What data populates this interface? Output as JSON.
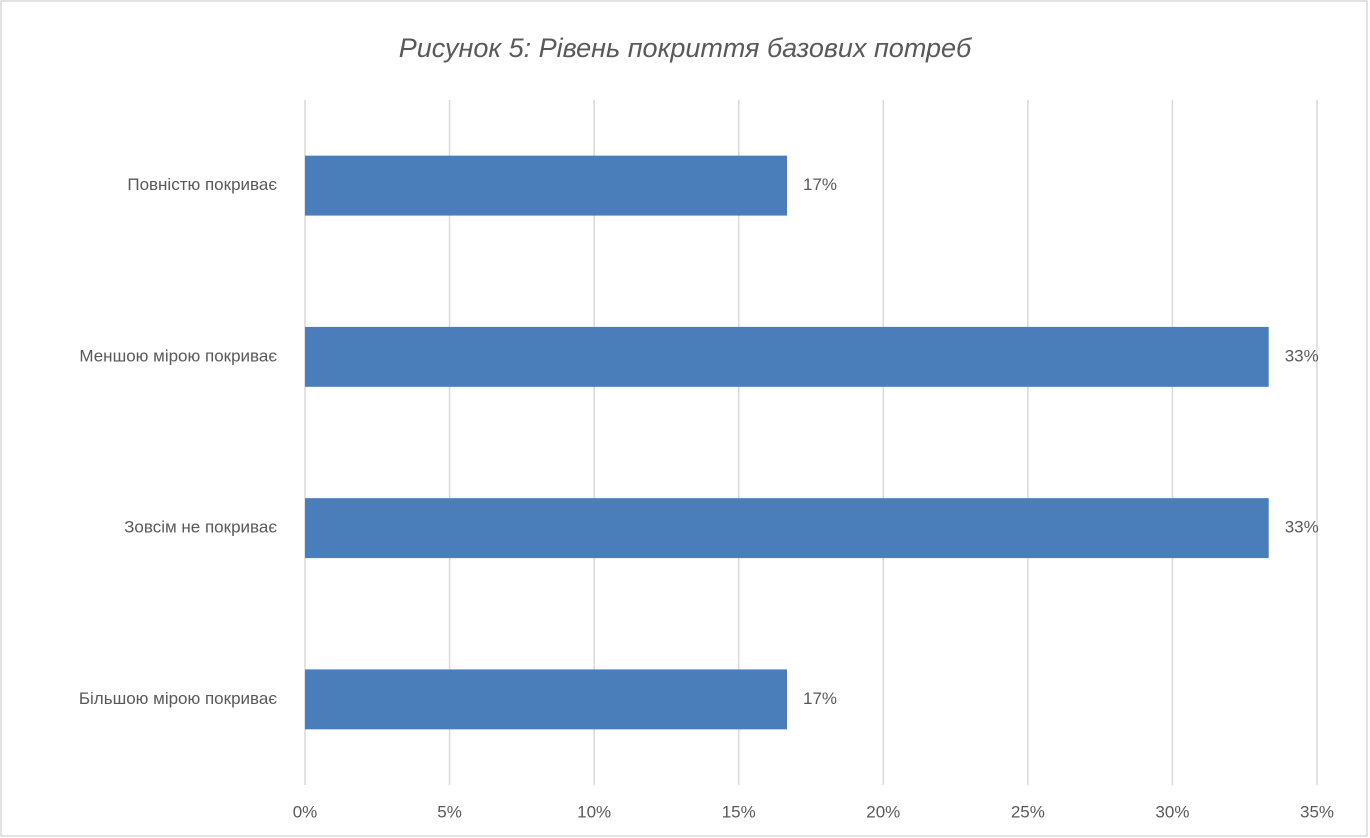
{
  "chart_data": {
    "type": "bar",
    "orientation": "horizontal",
    "title": "Рисунок 5: Рівень покриття базових потреб",
    "categories": [
      "Повністю покриває",
      "Меншою мірою покриває",
      "Зовсім не покриває",
      "Більшою мірою покриває"
    ],
    "values": [
      16.67,
      33.33,
      33.33,
      16.67
    ],
    "value_labels": [
      "17%",
      "33%",
      "33%",
      "17%"
    ],
    "color": "#4a7ebb",
    "xlim": [
      0,
      35
    ],
    "xticks": [
      {
        "value": 0,
        "label": "0%"
      },
      {
        "value": 5,
        "label": "5%"
      },
      {
        "value": 10,
        "label": "10%"
      },
      {
        "value": 15,
        "label": "15%"
      },
      {
        "value": 20,
        "label": "20%"
      },
      {
        "value": 25,
        "label": "25%"
      },
      {
        "value": 30,
        "label": "30%"
      },
      {
        "value": 35,
        "label": "35%"
      }
    ],
    "grid": true
  }
}
